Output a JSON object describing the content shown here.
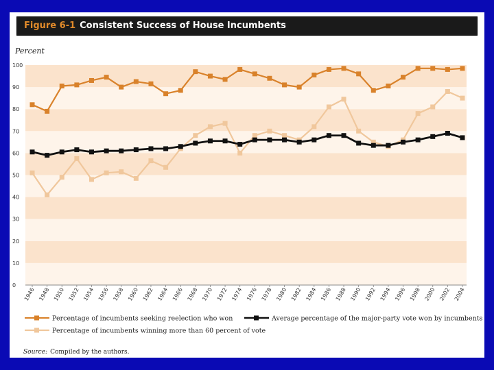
{
  "figure": {
    "number": "Figure 6-1",
    "title": "Consistent Success of House Incumbents"
  },
  "source": {
    "prefix": "Source:",
    "text": "Compiled by the authors."
  },
  "colors": {
    "background": "#0a0ab4",
    "series_reelection": "#d9822b",
    "series_over60": "#f0c79c",
    "series_avgvote": "#111111",
    "band_dark": "#fbe3cc",
    "band_light": "#fef4ea"
  },
  "chart_data": {
    "type": "line",
    "title": "Consistent Success of House Incumbents",
    "ylabel": "Percent",
    "xlabel": "",
    "ylim": [
      0,
      100
    ],
    "yticks": [
      0,
      10,
      20,
      30,
      40,
      50,
      60,
      70,
      80,
      90,
      100
    ],
    "x": [
      "1946",
      "1948",
      "1950",
      "1952",
      "1954",
      "1956",
      "1958",
      "1960",
      "1962",
      "1964",
      "1966",
      "1968",
      "1970",
      "1972",
      "1974",
      "1976",
      "1978",
      "1980",
      "1982",
      "1984",
      "1986",
      "1988",
      "1990",
      "1992",
      "1994",
      "1996",
      "1998",
      "2000",
      "2002",
      "2004"
    ],
    "legend_position": "bottom",
    "series": [
      {
        "name": "Percentage of incumbents seeking reelection who won",
        "color": "#d9822b",
        "values": [
          82,
          79,
          90.5,
          91,
          93,
          94.5,
          90,
          92.5,
          91.5,
          87,
          88.5,
          97,
          95,
          93.5,
          98,
          96,
          94,
          91,
          90,
          95.5,
          98,
          98.5,
          96,
          88.5,
          90.5,
          94.5,
          98.5,
          98.5,
          98,
          98.5
        ]
      },
      {
        "name": "Average percentage of the major-party vote won by incumbents",
        "color": "#111111",
        "values": [
          60.5,
          59,
          60.5,
          61.5,
          60.5,
          61,
          61,
          61.5,
          62,
          62,
          63,
          64.5,
          65.5,
          65.5,
          64,
          66,
          66,
          66,
          65,
          66,
          68,
          68,
          64.5,
          63.5,
          63.5,
          65,
          66,
          67.5,
          69,
          67
        ]
      },
      {
        "name": "Percentage of incumbents winning more than 60 percent of vote",
        "color": "#f0c79c",
        "values": [
          51,
          41,
          49,
          57.5,
          48,
          51,
          51.5,
          48.5,
          56.5,
          53.5,
          62,
          68,
          72,
          73.5,
          60,
          68,
          70,
          68,
          66,
          72,
          81,
          84.5,
          70,
          65,
          63,
          66,
          78,
          81,
          88,
          85
        ]
      }
    ]
  }
}
